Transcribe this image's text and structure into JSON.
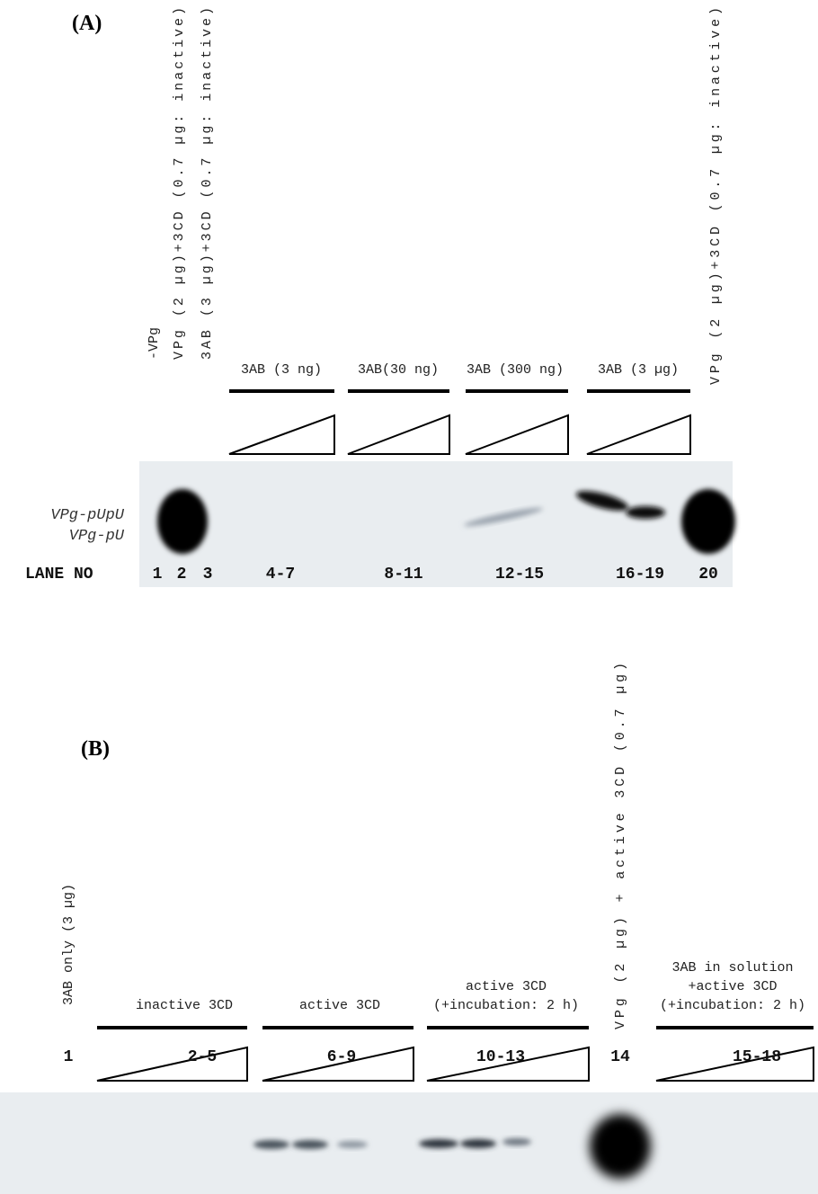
{
  "panel_a": {
    "label": "(A)",
    "lane_labels": [
      "-VPg",
      "VPg (2 µg)+3CD (0.7 µg: inactive)",
      "3AB (3 µg)+3CD (0.7 µg: inactive)",
      "VPg (2 µg)+3CD (0.7 µg: inactive)"
    ],
    "groups": [
      "3AB (3 ng)",
      "3AB(30 ng)",
      "3AB (300 ng)",
      "3AB (3 µg)"
    ],
    "bands": [
      "VPg-pUpU",
      "VPg-pU"
    ],
    "lane_no_label": "LANE NO",
    "lane_numbers": [
      "1",
      "2",
      "3",
      "4-7",
      "8-11",
      "12-15",
      "16-19",
      "20"
    ]
  },
  "panel_b": {
    "label": "(B)",
    "lane_labels": [
      "3AB only (3 µg)",
      "VPg (2 µg) + active 3CD (0.7 µg)"
    ],
    "groups": [
      [
        "inactive 3CD"
      ],
      [
        "active 3CD"
      ],
      [
        "active 3CD",
        "(+incubation: 2 h)"
      ],
      [
        "3AB in solution",
        "+active 3CD",
        "(+incubation: 2 h)"
      ]
    ],
    "lane_numbers": [
      "1",
      "2-5",
      "6-9",
      "10-13",
      "14",
      "15-18"
    ]
  }
}
